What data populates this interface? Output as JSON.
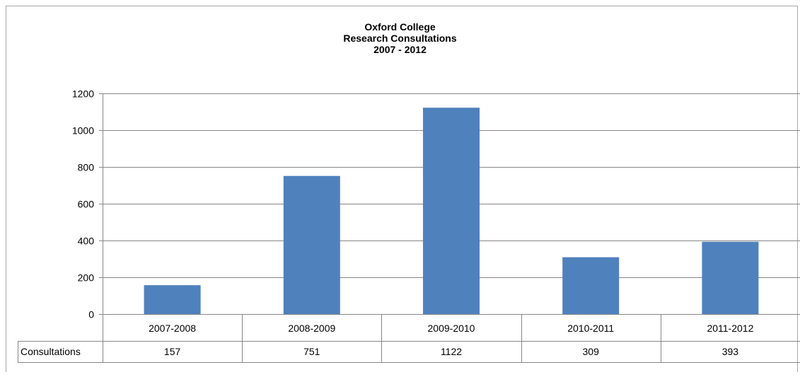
{
  "chart_data": {
    "type": "bar",
    "title_lines": [
      "Oxford College",
      "Research Consultations",
      "2007 - 2012"
    ],
    "categories": [
      "2007-2008",
      "2008-2009",
      "2009-2010",
      "2010-2011",
      "2011-2012"
    ],
    "series": [
      {
        "name": "Consultations",
        "values": [
          157,
          751,
          1122,
          309,
          393
        ]
      }
    ],
    "y_ticks": [
      0,
      200,
      400,
      600,
      800,
      1000,
      1200
    ],
    "ylim": [
      0,
      1200
    ],
    "grid": true,
    "data_table": true,
    "colors": {
      "bar": "#4f81bd",
      "grid": "#868686",
      "axis": "#868686",
      "table_border": "#868686"
    }
  }
}
